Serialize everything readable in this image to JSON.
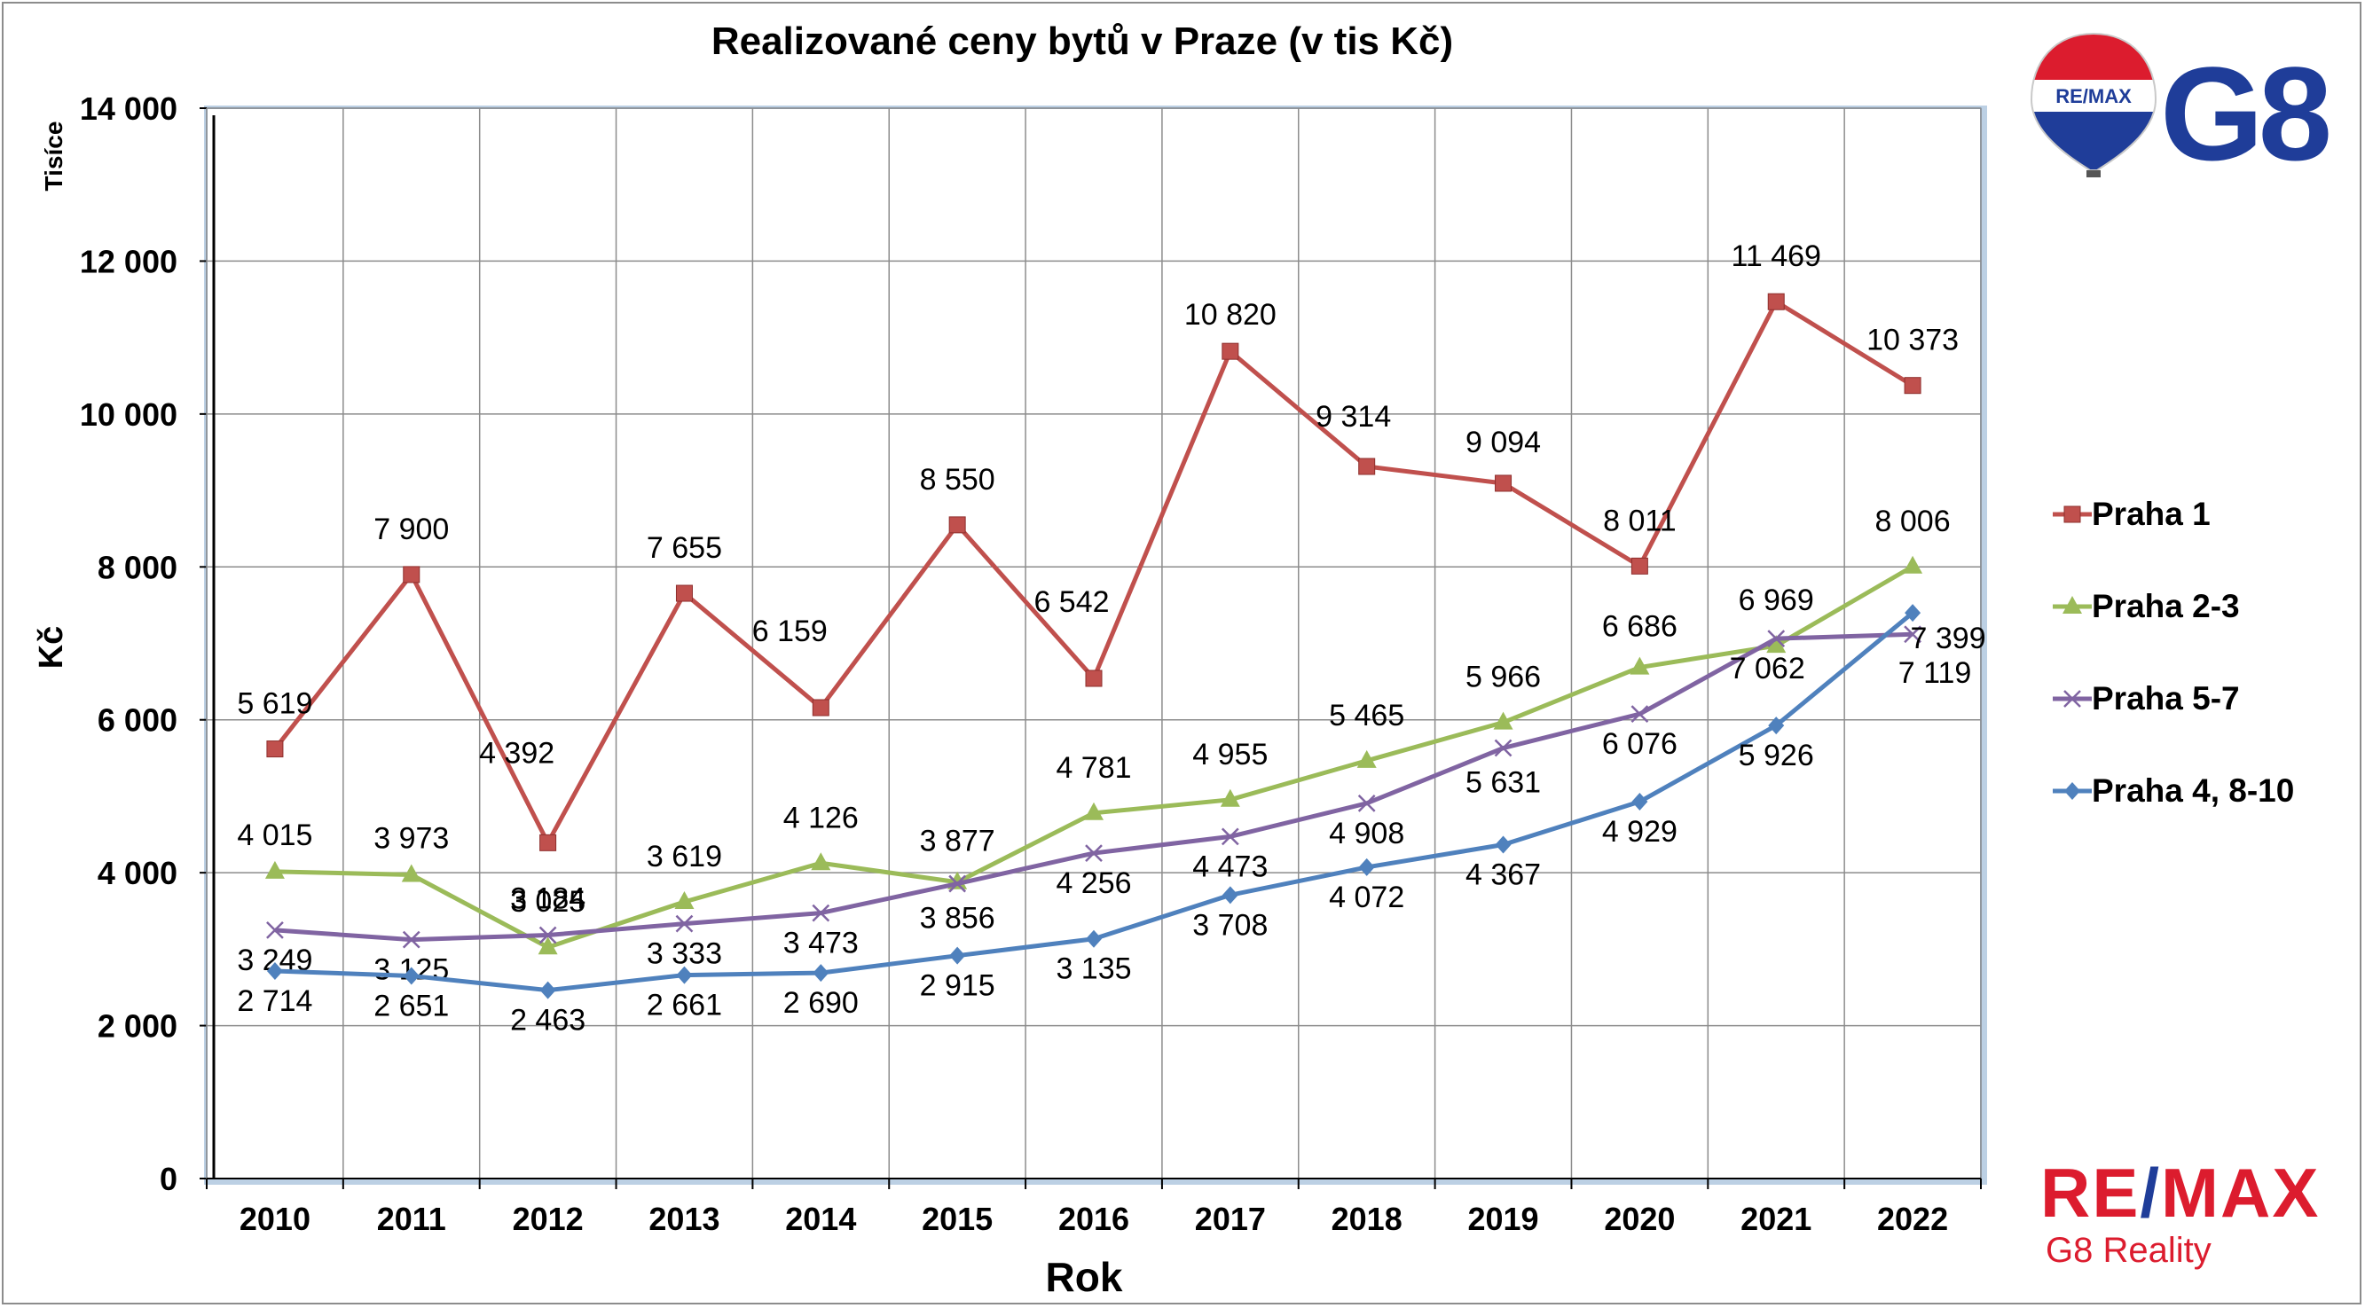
{
  "chart_data": {
    "type": "line",
    "title": "Realizované ceny bytů v Praze (v tis Kč)",
    "xlabel": "Rok",
    "ylabel": "Kč",
    "yunit_label": "Tisíce",
    "ylim": [
      0,
      14000
    ],
    "ytick_values": [
      0,
      2000,
      4000,
      6000,
      8000,
      10000,
      12000,
      14000
    ],
    "ytick_labels": [
      "0",
      "2 000",
      "4 000",
      "6 000",
      "8 000",
      "10 000",
      "12 000",
      "14 000"
    ],
    "categories": [
      "2010",
      "2011",
      "2012",
      "2013",
      "2014",
      "2015",
      "2016",
      "2017",
      "2018",
      "2019",
      "2020",
      "2021",
      "2022"
    ],
    "grid": true,
    "legend_position": "right",
    "series": [
      {
        "name": "Praha 1",
        "color": "#c0504d",
        "marker": "square",
        "values": [
          5619,
          7900,
          4392,
          7655,
          6159,
          8550,
          6542,
          10820,
          9314,
          9094,
          8011,
          11469,
          10373
        ],
        "labels": [
          "5 619",
          "7 900",
          "4 392",
          "7 655",
          "6 159",
          "8 550",
          "6 542",
          "10 820",
          "9 314",
          "9 094",
          "8 011",
          "11 469",
          "10 373"
        ]
      },
      {
        "name": "Praha 2-3",
        "color": "#9bbb59",
        "marker": "triangle",
        "values": [
          4015,
          3973,
          3025,
          3619,
          4126,
          3877,
          4781,
          4955,
          5465,
          5966,
          6686,
          6969,
          8006
        ],
        "labels": [
          "4 015",
          "3 973",
          "3 025",
          "3 619",
          "4 126",
          "3 877",
          "4 781",
          "4 955",
          "5 465",
          "5 966",
          "6 686",
          "6 969",
          "8 006"
        ]
      },
      {
        "name": "Praha 5-7",
        "color": "#8064a2",
        "marker": "x",
        "values": [
          3249,
          3125,
          3184,
          3333,
          3473,
          3856,
          4256,
          4473,
          4908,
          5631,
          6076,
          7062,
          7119
        ],
        "labels": [
          "3 249",
          "3 125",
          "3 184",
          "3 333",
          "3 473",
          "3 856",
          "4 256",
          "4 473",
          "4 908",
          "5 631",
          "6 076",
          "7 062",
          "7 119"
        ]
      },
      {
        "name": "Praha 4, 8-10",
        "color": "#4f81bd",
        "marker": "diamond",
        "values": [
          2714,
          2651,
          2463,
          2661,
          2690,
          2915,
          3135,
          3708,
          4072,
          4367,
          4929,
          5926,
          7399
        ],
        "labels": [
          "2 714",
          "2 651",
          "2 463",
          "2 661",
          "2 690",
          "2 915",
          "3 135",
          "3 708",
          "4 072",
          "4 367",
          "4 929",
          "5 926",
          "7 399"
        ]
      }
    ]
  },
  "logos": {
    "top_balloon_text": "RE/MAX",
    "top_brand": "G8",
    "bottom_brand_left": "RE",
    "bottom_brand_slash": "/",
    "bottom_brand_right": "MAX",
    "bottom_sub": "G8 Reality"
  }
}
